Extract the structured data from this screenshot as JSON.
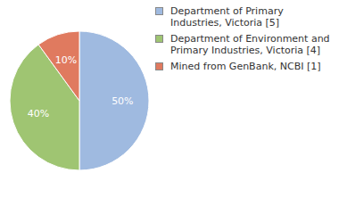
{
  "chart_data": {
    "type": "pie",
    "categories": [
      "Department of Primary Industries, Victoria [5]",
      "Department of Environment and Primary Industries, Victoria [4]",
      "Mined from GenBank, NCBI [1]"
    ],
    "values": [
      50,
      40,
      10
    ],
    "value_labels": [
      "50%",
      "40%",
      "10%"
    ],
    "colors": [
      "#9fbae0",
      "#9fc572",
      "#e07a5f"
    ],
    "data_labels": true,
    "legend": "right"
  }
}
